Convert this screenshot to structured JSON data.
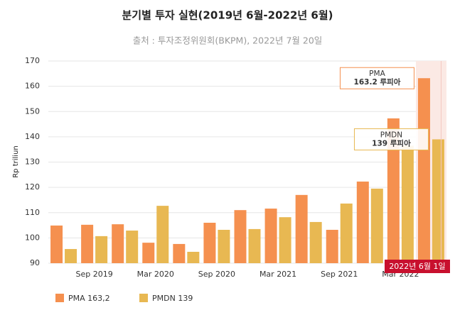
{
  "chart_data": {
    "type": "bar",
    "title": "분기별 투자 실현(2019년 6월-2022년 6월)",
    "subtitle": "출처 : 투자조정위원회(BKPM), 2022년 7월 20일",
    "y_label": "Rp triliun",
    "categories": [
      null,
      "Sep 2019",
      null,
      "Mar 2020",
      null,
      "Sep 2020",
      null,
      "Mar 2021",
      null,
      "Sep 2021",
      null,
      "Mar 2022",
      null
    ],
    "hover_label": "2022년 6월 1일",
    "series": [
      {
        "name": "PMA",
        "color": "#f5904f",
        "values": [
          104.9,
          105.2,
          105.4,
          98.1,
          97.6,
          106,
          111,
          111.6,
          117,
          103.2,
          122.3,
          147.3,
          163.2
        ],
        "value_labels": [
          null,
          null,
          null,
          null,
          null,
          null,
          null,
          null,
          null,
          null,
          null,
          null,
          "163.2 루피아"
        ]
      },
      {
        "name": "PMDN",
        "color": "#e8b852",
        "values": [
          95.6,
          100.7,
          102.9,
          112.7,
          94.5,
          103.2,
          103.5,
          108.2,
          106.3,
          113.6,
          119.5,
          136.5,
          139
        ],
        "value_labels": [
          null,
          null,
          null,
          null,
          null,
          null,
          null,
          null,
          null,
          null,
          null,
          null,
          "139 루피아"
        ]
      }
    ],
    "legend_labels": [
      "PMA 163,2",
      "PMDN 139"
    ],
    "ylim": [
      90,
      170
    ],
    "yticks": [
      90,
      100,
      110,
      120,
      130,
      140,
      150,
      160,
      170
    ],
    "grid": true
  }
}
